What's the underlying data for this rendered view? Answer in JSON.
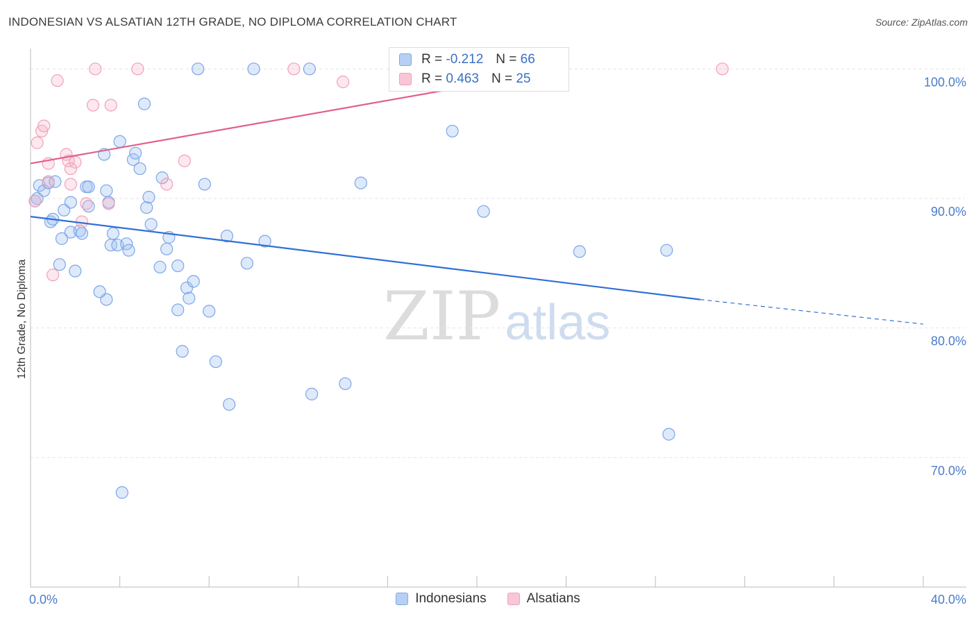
{
  "title": "INDONESIAN VS ALSATIAN 12TH GRADE, NO DIPLOMA CORRELATION CHART",
  "source": "Source: ZipAtlas.com",
  "watermark": {
    "zip": "ZIP",
    "atlas": "atlas"
  },
  "colors": {
    "blue": "#7aa7e8",
    "blue_line": "#2f6fd6",
    "pink": "#f2a0b8",
    "pink_line": "#e0608a",
    "tick_text": "#4a7cc9"
  },
  "legend": {
    "rows": [
      {
        "r_label": "R = ",
        "r_value": "-0.212",
        "n_label": "N = ",
        "n_value": "66"
      },
      {
        "r_label": "R = ",
        "r_value": " 0.463",
        "n_label": "N = ",
        "n_value": "25"
      }
    ]
  },
  "bottom_legend": {
    "indonesians": "Indonesians",
    "alsatians": "Alsatians"
  },
  "chart_data": {
    "type": "scatter",
    "title": "INDONESIAN VS ALSATIAN 12TH GRADE, NO DIPLOMA CORRELATION CHART",
    "xlabel": "",
    "ylabel": "12th Grade, No Diploma",
    "xlim": [
      0,
      40
    ],
    "ylim": [
      60,
      102
    ],
    "x_tick_labels": [
      "0.0%",
      "40.0%"
    ],
    "y_ticks": [
      70,
      80,
      90,
      100
    ],
    "y_tick_labels": [
      "70.0%",
      "80.0%",
      "90.0%",
      "100.0%"
    ],
    "grid": "horizontal dashed",
    "legend_position": "top-center",
    "series": [
      {
        "name": "Indonesians",
        "color": "#7aa7e8",
        "points": [
          [
            0.3,
            90.0
          ],
          [
            0.4,
            91.0
          ],
          [
            0.6,
            90.6
          ],
          [
            0.8,
            91.2
          ],
          [
            1.1,
            91.3
          ],
          [
            0.9,
            88.2
          ],
          [
            1.0,
            88.4
          ],
          [
            1.5,
            89.1
          ],
          [
            1.8,
            89.7
          ],
          [
            1.4,
            86.9
          ],
          [
            1.8,
            87.4
          ],
          [
            2.2,
            87.5
          ],
          [
            2.3,
            87.3
          ],
          [
            1.3,
            84.9
          ],
          [
            2.0,
            84.4
          ],
          [
            2.5,
            90.9
          ],
          [
            2.6,
            90.9
          ],
          [
            2.6,
            89.4
          ],
          [
            3.3,
            93.4
          ],
          [
            3.4,
            82.2
          ],
          [
            3.1,
            82.8
          ],
          [
            3.5,
            89.7
          ],
          [
            3.4,
            90.6
          ],
          [
            3.6,
            86.4
          ],
          [
            3.7,
            87.3
          ],
          [
            3.9,
            86.4
          ],
          [
            4.0,
            94.4
          ],
          [
            4.3,
            86.5
          ],
          [
            4.4,
            86.0
          ],
          [
            4.6,
            93.0
          ],
          [
            4.7,
            93.5
          ],
          [
            4.9,
            92.3
          ],
          [
            5.1,
            97.3
          ],
          [
            5.2,
            89.3
          ],
          [
            5.3,
            90.1
          ],
          [
            5.4,
            88.0
          ],
          [
            5.8,
            84.7
          ],
          [
            5.9,
            91.6
          ],
          [
            6.1,
            86.1
          ],
          [
            6.2,
            87.0
          ],
          [
            6.6,
            81.4
          ],
          [
            6.6,
            84.8
          ],
          [
            6.8,
            78.2
          ],
          [
            7.0,
            83.1
          ],
          [
            7.1,
            82.3
          ],
          [
            7.3,
            83.6
          ],
          [
            7.5,
            100.0
          ],
          [
            7.8,
            91.1
          ],
          [
            8.0,
            81.3
          ],
          [
            8.3,
            77.4
          ],
          [
            8.8,
            87.1
          ],
          [
            8.9,
            74.1
          ],
          [
            9.7,
            85.0
          ],
          [
            10.0,
            100.0
          ],
          [
            10.5,
            86.7
          ],
          [
            12.5,
            100.0
          ],
          [
            12.6,
            74.9
          ],
          [
            14.1,
            75.7
          ],
          [
            14.8,
            91.2
          ],
          [
            18.9,
            95.2
          ],
          [
            20.3,
            89.0
          ],
          [
            24.6,
            85.9
          ],
          [
            28.5,
            86.0
          ],
          [
            28.6,
            71.8
          ],
          [
            4.1,
            67.3
          ],
          [
            0.2,
            89.8
          ]
        ]
      },
      {
        "name": "Alsatians",
        "color": "#f2a0b8",
        "points": [
          [
            0.3,
            94.3
          ],
          [
            0.5,
            95.2
          ],
          [
            0.6,
            95.6
          ],
          [
            0.8,
            91.3
          ],
          [
            0.8,
            92.7
          ],
          [
            1.0,
            84.1
          ],
          [
            1.2,
            99.1
          ],
          [
            1.6,
            93.4
          ],
          [
            1.7,
            92.9
          ],
          [
            1.8,
            91.1
          ],
          [
            2.0,
            92.8
          ],
          [
            2.3,
            88.2
          ],
          [
            2.5,
            89.6
          ],
          [
            2.8,
            97.2
          ],
          [
            2.9,
            100.0
          ],
          [
            3.5,
            89.6
          ],
          [
            3.6,
            97.2
          ],
          [
            4.8,
            100.0
          ],
          [
            6.1,
            91.1
          ],
          [
            6.9,
            92.9
          ],
          [
            11.8,
            100.0
          ],
          [
            14.0,
            99.0
          ],
          [
            31.0,
            100.0
          ],
          [
            1.8,
            92.3
          ],
          [
            0.2,
            89.8
          ]
        ]
      }
    ],
    "trend_lines": [
      {
        "series": "Indonesians",
        "solid_from": [
          0,
          88.6
        ],
        "solid_to": [
          30.0,
          82.2
        ],
        "dashed_to": [
          40,
          80.3
        ]
      },
      {
        "series": "Alsatians",
        "from": [
          0,
          92.7
        ],
        "to": [
          24.0,
          100.0
        ]
      }
    ]
  }
}
